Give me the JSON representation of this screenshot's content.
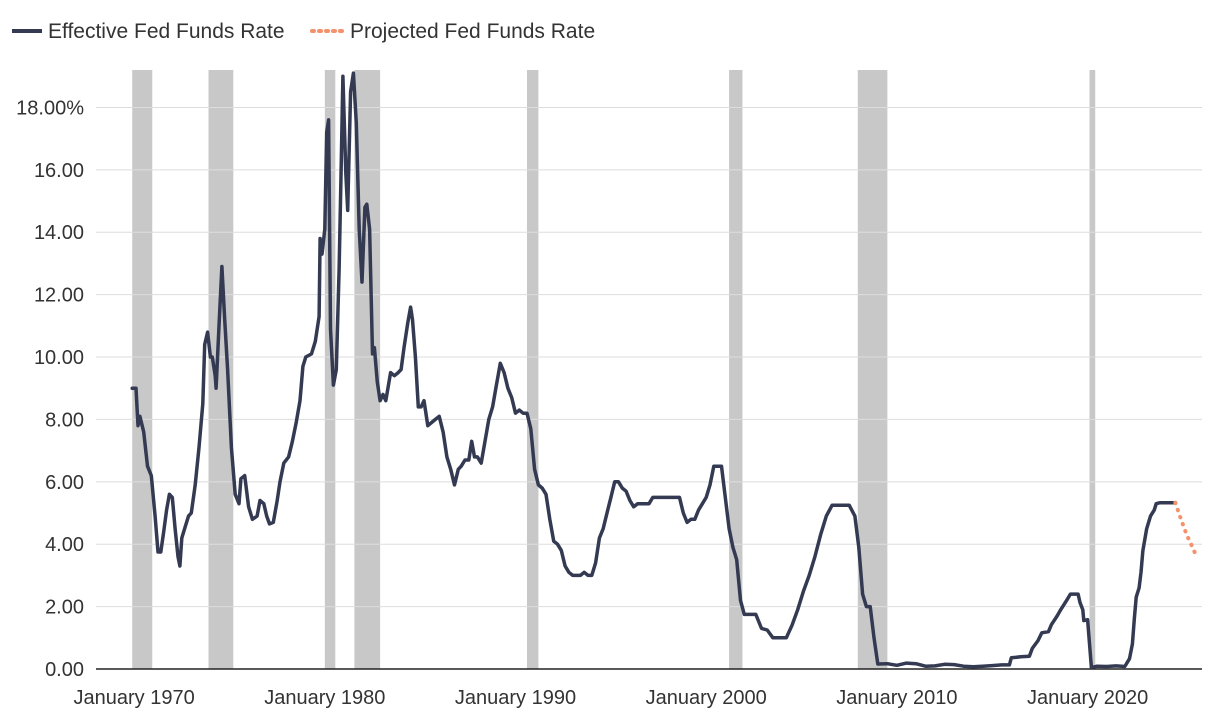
{
  "chart_data": {
    "type": "line",
    "title": "",
    "xlabel": "",
    "ylabel": "",
    "xlim": [
      1968.0,
      2026.0
    ],
    "ylim": [
      0,
      19.2
    ],
    "grid": true,
    "legend": {
      "placement": "top-left",
      "entries": [
        {
          "label": "Effective Fed Funds Rate",
          "color": "#333a52",
          "style": "solid"
        },
        {
          "label": "Projected Fed Funds Rate",
          "color": "#f4926d",
          "style": "dotted"
        }
      ]
    },
    "y_ticks": [
      {
        "value": 0,
        "label": "0.00"
      },
      {
        "value": 2,
        "label": "2.00"
      },
      {
        "value": 4,
        "label": "4.00"
      },
      {
        "value": 6,
        "label": "6.00"
      },
      {
        "value": 8,
        "label": "8.00"
      },
      {
        "value": 10,
        "label": "10.00"
      },
      {
        "value": 12,
        "label": "12.00"
      },
      {
        "value": 14,
        "label": "14.00"
      },
      {
        "value": 16,
        "label": "16.00"
      },
      {
        "value": 18,
        "label": "18.00%"
      }
    ],
    "x_ticks": [
      {
        "value": 1970.0,
        "label": "January 1970"
      },
      {
        "value": 1980.0,
        "label": "January 1980"
      },
      {
        "value": 1990.0,
        "label": "January 1990"
      },
      {
        "value": 2000.0,
        "label": "January 2000"
      },
      {
        "value": 2010.0,
        "label": "January 2010"
      },
      {
        "value": 2020.0,
        "label": "January 2020"
      }
    ],
    "recessions": [
      [
        1969.9,
        1970.95
      ],
      [
        1973.9,
        1975.2
      ],
      [
        1980.0,
        1980.55
      ],
      [
        1981.55,
        1982.9
      ],
      [
        1990.6,
        1991.2
      ],
      [
        2001.2,
        2001.9
      ],
      [
        2007.95,
        2009.5
      ],
      [
        2020.1,
        2020.4
      ]
    ],
    "series": [
      {
        "name": "Effective Fed Funds Rate",
        "color": "#333a52",
        "style": "solid",
        "points": [
          [
            1969.9,
            9.0
          ],
          [
            1970.1,
            9.0
          ],
          [
            1970.2,
            7.8
          ],
          [
            1970.3,
            8.1
          ],
          [
            1970.5,
            7.6
          ],
          [
            1970.7,
            6.5
          ],
          [
            1970.9,
            6.2
          ],
          [
            1971.1,
            4.9
          ],
          [
            1971.25,
            3.75
          ],
          [
            1971.4,
            3.75
          ],
          [
            1971.55,
            4.4
          ],
          [
            1971.7,
            5.1
          ],
          [
            1971.85,
            5.6
          ],
          [
            1972.0,
            5.5
          ],
          [
            1972.15,
            4.5
          ],
          [
            1972.3,
            3.6
          ],
          [
            1972.4,
            3.3
          ],
          [
            1972.5,
            4.2
          ],
          [
            1972.7,
            4.6
          ],
          [
            1972.85,
            4.9
          ],
          [
            1973.0,
            5.0
          ],
          [
            1973.2,
            5.9
          ],
          [
            1973.4,
            7.1
          ],
          [
            1973.6,
            8.5
          ],
          [
            1973.7,
            10.4
          ],
          [
            1973.85,
            10.8
          ],
          [
            1974.0,
            10.0
          ],
          [
            1974.1,
            10.0
          ],
          [
            1974.25,
            9.4
          ],
          [
            1974.3,
            9.0
          ],
          [
            1974.45,
            11.0
          ],
          [
            1974.6,
            12.9
          ],
          [
            1974.75,
            11.2
          ],
          [
            1974.9,
            9.6
          ],
          [
            1975.1,
            7.1
          ],
          [
            1975.3,
            5.6
          ],
          [
            1975.5,
            5.3
          ],
          [
            1975.6,
            6.1
          ],
          [
            1975.8,
            6.2
          ],
          [
            1976.0,
            5.2
          ],
          [
            1976.2,
            4.8
          ],
          [
            1976.45,
            4.9
          ],
          [
            1976.6,
            5.4
          ],
          [
            1976.8,
            5.3
          ],
          [
            1976.95,
            4.9
          ],
          [
            1977.1,
            4.65
          ],
          [
            1977.3,
            4.7
          ],
          [
            1977.5,
            5.4
          ],
          [
            1977.65,
            6.0
          ],
          [
            1977.85,
            6.6
          ],
          [
            1978.1,
            6.8
          ],
          [
            1978.3,
            7.3
          ],
          [
            1978.5,
            7.9
          ],
          [
            1978.7,
            8.6
          ],
          [
            1978.85,
            9.7
          ],
          [
            1979.0,
            10.0
          ],
          [
            1979.3,
            10.1
          ],
          [
            1979.5,
            10.5
          ],
          [
            1979.7,
            11.3
          ],
          [
            1979.75,
            13.8
          ],
          [
            1979.85,
            13.3
          ],
          [
            1980.0,
            14.1
          ],
          [
            1980.1,
            17.2
          ],
          [
            1980.2,
            17.6
          ],
          [
            1980.3,
            10.9
          ],
          [
            1980.45,
            9.1
          ],
          [
            1980.6,
            9.6
          ],
          [
            1980.75,
            12.8
          ],
          [
            1980.85,
            15.8
          ],
          [
            1980.95,
            19.0
          ],
          [
            1981.1,
            15.9
          ],
          [
            1981.2,
            14.7
          ],
          [
            1981.35,
            18.5
          ],
          [
            1981.5,
            19.1
          ],
          [
            1981.65,
            17.5
          ],
          [
            1981.8,
            14.1
          ],
          [
            1981.95,
            12.4
          ],
          [
            1982.1,
            14.8
          ],
          [
            1982.2,
            14.9
          ],
          [
            1982.35,
            14.1
          ],
          [
            1982.5,
            10.1
          ],
          [
            1982.6,
            10.3
          ],
          [
            1982.75,
            9.2
          ],
          [
            1982.9,
            8.6
          ],
          [
            1983.05,
            8.8
          ],
          [
            1983.2,
            8.6
          ],
          [
            1983.45,
            9.5
          ],
          [
            1983.65,
            9.4
          ],
          [
            1983.85,
            9.5
          ],
          [
            1984.0,
            9.6
          ],
          [
            1984.15,
            10.3
          ],
          [
            1984.35,
            11.1
          ],
          [
            1984.5,
            11.6
          ],
          [
            1984.6,
            11.2
          ],
          [
            1984.75,
            10.0
          ],
          [
            1984.9,
            8.4
          ],
          [
            1985.05,
            8.4
          ],
          [
            1985.2,
            8.6
          ],
          [
            1985.4,
            7.8
          ],
          [
            1985.6,
            7.9
          ],
          [
            1985.8,
            8.0
          ],
          [
            1986.0,
            8.1
          ],
          [
            1986.2,
            7.6
          ],
          [
            1986.4,
            6.8
          ],
          [
            1986.6,
            6.4
          ],
          [
            1986.8,
            5.9
          ],
          [
            1987.0,
            6.4
          ],
          [
            1987.15,
            6.5
          ],
          [
            1987.35,
            6.7
          ],
          [
            1987.55,
            6.7
          ],
          [
            1987.7,
            7.3
          ],
          [
            1987.85,
            6.8
          ],
          [
            1988.0,
            6.8
          ],
          [
            1988.2,
            6.6
          ],
          [
            1988.4,
            7.3
          ],
          [
            1988.6,
            8.0
          ],
          [
            1988.8,
            8.4
          ],
          [
            1989.0,
            9.1
          ],
          [
            1989.2,
            9.8
          ],
          [
            1989.4,
            9.5
          ],
          [
            1989.6,
            9.0
          ],
          [
            1989.8,
            8.7
          ],
          [
            1990.0,
            8.2
          ],
          [
            1990.2,
            8.3
          ],
          [
            1990.4,
            8.2
          ],
          [
            1990.6,
            8.2
          ],
          [
            1990.8,
            7.7
          ],
          [
            1991.0,
            6.4
          ],
          [
            1991.2,
            5.9
          ],
          [
            1991.4,
            5.8
          ],
          [
            1991.6,
            5.6
          ],
          [
            1991.8,
            4.8
          ],
          [
            1992.0,
            4.1
          ],
          [
            1992.2,
            4.0
          ],
          [
            1992.4,
            3.8
          ],
          [
            1992.6,
            3.3
          ],
          [
            1992.8,
            3.1
          ],
          [
            1993.0,
            3.0
          ],
          [
            1993.2,
            3.0
          ],
          [
            1993.4,
            3.0
          ],
          [
            1993.6,
            3.1
          ],
          [
            1993.8,
            3.0
          ],
          [
            1994.0,
            3.0
          ],
          [
            1994.2,
            3.4
          ],
          [
            1994.4,
            4.2
          ],
          [
            1994.6,
            4.5
          ],
          [
            1994.8,
            5.0
          ],
          [
            1995.0,
            5.5
          ],
          [
            1995.2,
            6.0
          ],
          [
            1995.4,
            6.0
          ],
          [
            1995.6,
            5.8
          ],
          [
            1995.8,
            5.7
          ],
          [
            1996.0,
            5.4
          ],
          [
            1996.2,
            5.2
          ],
          [
            1996.4,
            5.3
          ],
          [
            1996.6,
            5.3
          ],
          [
            1996.8,
            5.3
          ],
          [
            1997.0,
            5.3
          ],
          [
            1997.2,
            5.5
          ],
          [
            1997.4,
            5.5
          ],
          [
            1997.6,
            5.5
          ],
          [
            1997.8,
            5.5
          ],
          [
            1998.0,
            5.5
          ],
          [
            1998.2,
            5.5
          ],
          [
            1998.4,
            5.5
          ],
          [
            1998.6,
            5.5
          ],
          [
            1998.8,
            5.0
          ],
          [
            1999.0,
            4.7
          ],
          [
            1999.2,
            4.8
          ],
          [
            1999.4,
            4.8
          ],
          [
            1999.6,
            5.1
          ],
          [
            1999.8,
            5.3
          ],
          [
            2000.0,
            5.5
          ],
          [
            2000.2,
            5.9
          ],
          [
            2000.4,
            6.5
          ],
          [
            2000.6,
            6.5
          ],
          [
            2000.8,
            6.5
          ],
          [
            2001.0,
            5.5
          ],
          [
            2001.2,
            4.5
          ],
          [
            2001.4,
            3.9
          ],
          [
            2001.6,
            3.5
          ],
          [
            2001.8,
            2.2
          ],
          [
            2002.0,
            1.75
          ],
          [
            2002.3,
            1.75
          ],
          [
            2002.6,
            1.75
          ],
          [
            2002.9,
            1.3
          ],
          [
            2003.2,
            1.25
          ],
          [
            2003.5,
            1.0
          ],
          [
            2003.8,
            1.0
          ],
          [
            2004.2,
            1.0
          ],
          [
            2004.5,
            1.4
          ],
          [
            2004.8,
            1.9
          ],
          [
            2005.1,
            2.5
          ],
          [
            2005.4,
            3.0
          ],
          [
            2005.7,
            3.6
          ],
          [
            2006.0,
            4.3
          ],
          [
            2006.3,
            4.9
          ],
          [
            2006.6,
            5.25
          ],
          [
            2006.9,
            5.25
          ],
          [
            2007.2,
            5.25
          ],
          [
            2007.5,
            5.25
          ],
          [
            2007.8,
            4.9
          ],
          [
            2008.0,
            3.9
          ],
          [
            2008.2,
            2.4
          ],
          [
            2008.4,
            2.0
          ],
          [
            2008.6,
            2.0
          ],
          [
            2008.8,
            1.0
          ],
          [
            2009.0,
            0.16
          ],
          [
            2009.5,
            0.17
          ],
          [
            2010.0,
            0.12
          ],
          [
            2010.5,
            0.19
          ],
          [
            2011.0,
            0.17
          ],
          [
            2011.5,
            0.09
          ],
          [
            2012.0,
            0.1
          ],
          [
            2012.5,
            0.15
          ],
          [
            2013.0,
            0.14
          ],
          [
            2013.5,
            0.09
          ],
          [
            2014.0,
            0.07
          ],
          [
            2014.5,
            0.09
          ],
          [
            2015.0,
            0.11
          ],
          [
            2015.5,
            0.13
          ],
          [
            2015.9,
            0.13
          ],
          [
            2016.0,
            0.36
          ],
          [
            2016.5,
            0.39
          ],
          [
            2016.95,
            0.41
          ],
          [
            2017.1,
            0.66
          ],
          [
            2017.4,
            0.91
          ],
          [
            2017.6,
            1.16
          ],
          [
            2017.95,
            1.2
          ],
          [
            2018.1,
            1.42
          ],
          [
            2018.4,
            1.7
          ],
          [
            2018.6,
            1.91
          ],
          [
            2018.9,
            2.2
          ],
          [
            2019.1,
            2.4
          ],
          [
            2019.5,
            2.4
          ],
          [
            2019.6,
            2.13
          ],
          [
            2019.75,
            1.9
          ],
          [
            2019.8,
            1.55
          ],
          [
            2020.0,
            1.58
          ],
          [
            2020.2,
            0.05
          ],
          [
            2020.5,
            0.09
          ],
          [
            2021.0,
            0.08
          ],
          [
            2021.5,
            0.1
          ],
          [
            2021.95,
            0.08
          ],
          [
            2022.2,
            0.33
          ],
          [
            2022.35,
            0.8
          ],
          [
            2022.45,
            1.6
          ],
          [
            2022.55,
            2.3
          ],
          [
            2022.7,
            2.6
          ],
          [
            2022.8,
            3.1
          ],
          [
            2022.9,
            3.8
          ],
          [
            2023.1,
            4.5
          ],
          [
            2023.3,
            4.9
          ],
          [
            2023.5,
            5.1
          ],
          [
            2023.6,
            5.3
          ],
          [
            2023.8,
            5.33
          ],
          [
            2024.0,
            5.33
          ],
          [
            2024.3,
            5.33
          ],
          [
            2024.6,
            5.33
          ]
        ]
      },
      {
        "name": "Projected Fed Funds Rate",
        "color": "#f4926d",
        "style": "dotted",
        "points": [
          [
            2024.6,
            5.33
          ],
          [
            2024.9,
            4.8
          ],
          [
            2025.2,
            4.3
          ],
          [
            2025.5,
            3.9
          ],
          [
            2025.65,
            3.7
          ]
        ]
      }
    ]
  }
}
